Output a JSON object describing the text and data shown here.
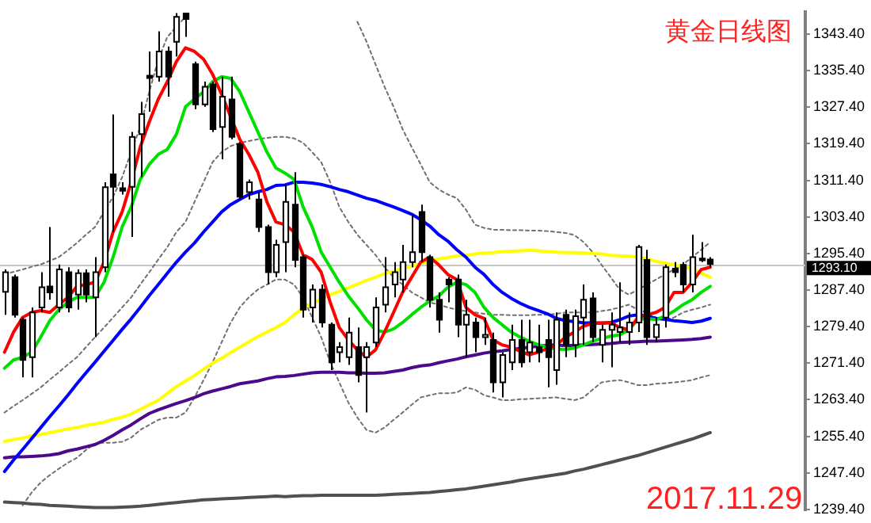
{
  "chart_data": {
    "type": "candlestick",
    "title": "黄金日线图",
    "annotations": [
      "2017.11.29"
    ],
    "categories": [
      null,
      null,
      null,
      null,
      null,
      null,
      null,
      null,
      null,
      null,
      null,
      null,
      null,
      null,
      null,
      null,
      null,
      null,
      null,
      null,
      null,
      null,
      null,
      null,
      null,
      null,
      null,
      null,
      null,
      null,
      null,
      null,
      null,
      null,
      null,
      null,
      null,
      null,
      null,
      null,
      null,
      null,
      null,
      null,
      null,
      null,
      null,
      null,
      null,
      null,
      null,
      null,
      null,
      null,
      null,
      null,
      null,
      null,
      null,
      null,
      null,
      null,
      null,
      null,
      null,
      null,
      null,
      null,
      null,
      null,
      null,
      null,
      null,
      null,
      null,
      null,
      null,
      null,
      null,
      null,
      null,
      null,
      null,
      null,
      null,
      null,
      null,
      null,
      null
    ],
    "ohlc": [
      [
        1287.0,
        1291.9,
        1282.0,
        1291.3
      ],
      [
        1290.2,
        1290.8,
        1281.4,
        1282.0
      ],
      [
        1280.9,
        1281.4,
        1268.3,
        1272.1
      ],
      [
        1272.7,
        1283.6,
        1268.3,
        1282.5
      ],
      [
        1283.6,
        1291.3,
        1282.5,
        1288.0
      ],
      [
        1288.2,
        1301.2,
        1285.3,
        1286.9
      ],
      [
        1283.6,
        1293.0,
        1282.5,
        1291.9
      ],
      [
        1291.3,
        1292.4,
        1282.5,
        1283.6
      ],
      [
        1286.4,
        1291.9,
        1283.1,
        1291.1
      ],
      [
        1291.1,
        1291.9,
        1284.7,
        1286.4
      ],
      [
        1285.8,
        1294.6,
        1277.1,
        1291.3
      ],
      [
        1292.4,
        1311.0,
        1291.3,
        1309.9
      ],
      [
        1312.7,
        1325.8,
        1300.1,
        1310.0
      ],
      [
        1309.7,
        1311.0,
        1308.3,
        1309.1
      ],
      [
        1310.0,
        1322.0,
        1299.0,
        1320.9
      ],
      [
        1321.5,
        1328.6,
        1312.1,
        1325.9
      ],
      [
        1334.3,
        1339.6,
        1326.4,
        1333.8
      ],
      [
        1334.1,
        1344.0,
        1333.0,
        1339.6
      ],
      [
        1339.6,
        1340.7,
        1329.7,
        1334.1
      ],
      [
        1341.7,
        1348.0,
        1338.5,
        1347.2
      ],
      [
        1347.9,
        1348.1,
        1342.8,
        1346.7
      ],
      [
        1336.8,
        1337.4,
        1327.0,
        1328.0
      ],
      [
        1328.0,
        1333.0,
        1327.5,
        1331.9
      ],
      [
        1332.4,
        1333.0,
        1322.0,
        1322.6
      ],
      [
        1323.1,
        1334.1,
        1316.0,
        1329.7
      ],
      [
        1329.1,
        1334.1,
        1320.4,
        1320.9
      ],
      [
        1319.3,
        1319.8,
        1307.2,
        1307.8
      ],
      [
        1308.8,
        1311.6,
        1307.2,
        1311.0
      ],
      [
        1307.2,
        1308.8,
        1300.1,
        1301.2
      ],
      [
        1301.2,
        1301.7,
        1288.6,
        1291.3
      ],
      [
        1291.3,
        1298.4,
        1290.2,
        1297.3
      ],
      [
        1297.9,
        1310.5,
        1291.3,
        1306.7
      ],
      [
        1306.1,
        1313.2,
        1292.4,
        1294.0
      ],
      [
        1294.6,
        1295.1,
        1281.4,
        1283.1
      ],
      [
        1283.6,
        1288.6,
        1280.3,
        1287.5
      ],
      [
        1287.5,
        1288.6,
        1279.2,
        1280.3
      ],
      [
        1279.8,
        1280.3,
        1269.9,
        1271.6
      ],
      [
        1273.8,
        1276.0,
        1271.6,
        1274.9
      ],
      [
        1272.7,
        1281.4,
        1271.0,
        1278.1
      ],
      [
        1274.9,
        1279.2,
        1267.2,
        1268.8
      ],
      [
        1272.7,
        1276.0,
        1260.6,
        1274.9
      ],
      [
        1275.9,
        1285.8,
        1274.9,
        1283.6
      ],
      [
        1284.2,
        1294.6,
        1282.5,
        1288.0
      ],
      [
        1288.6,
        1293.5,
        1285.8,
        1291.3
      ],
      [
        1289.7,
        1297.3,
        1286.9,
        1293.5
      ],
      [
        1293.5,
        1303.9,
        1292.4,
        1295.7
      ],
      [
        1304.5,
        1306.1,
        1293.5,
        1295.7
      ],
      [
        1294.6,
        1295.1,
        1283.6,
        1285.3
      ],
      [
        1285.3,
        1286.9,
        1278.1,
        1280.9
      ],
      [
        1289.7,
        1290.2,
        1284.7,
        1288.6
      ],
      [
        1289.7,
        1290.8,
        1277.1,
        1279.8
      ],
      [
        1279.8,
        1285.3,
        1272.7,
        1282.0
      ],
      [
        1280.3,
        1281.4,
        1273.8,
        1277.1
      ],
      [
        1277.1,
        1281.4,
        1275.4,
        1277.6
      ],
      [
        1276.5,
        1278.1,
        1265.0,
        1267.2
      ],
      [
        1267.2,
        1273.8,
        1263.9,
        1273.2
      ],
      [
        1271.6,
        1279.8,
        1269.9,
        1276.5
      ],
      [
        1276.5,
        1280.9,
        1270.5,
        1271.6
      ],
      [
        1273.8,
        1280.9,
        1271.6,
        1275.9
      ],
      [
        1274.9,
        1279.8,
        1271.6,
        1273.8
      ],
      [
        1276.5,
        1280.9,
        1266.1,
        1272.7
      ],
      [
        1269.9,
        1282.5,
        1266.7,
        1280.9
      ],
      [
        1282.0,
        1283.1,
        1272.7,
        1275.4
      ],
      [
        1275.4,
        1283.1,
        1272.7,
        1281.7
      ],
      [
        1281.4,
        1288.6,
        1275.4,
        1285.3
      ],
      [
        1285.6,
        1286.9,
        1276.0,
        1277.1
      ],
      [
        1275.4,
        1279.8,
        1271.6,
        1278.7
      ],
      [
        1278.7,
        1282.5,
        1270.5,
        1279.8
      ],
      [
        1278.2,
        1289.1,
        1276.0,
        1279.2
      ],
      [
        1278.2,
        1282.5,
        1275.4,
        1280.3
      ],
      [
        1280.3,
        1297.3,
        1278.2,
        1296.8
      ],
      [
        1294.0,
        1296.2,
        1275.4,
        1277.1
      ],
      [
        1277.1,
        1281.4,
        1276.0,
        1279.8
      ],
      [
        1281.4,
        1293.0,
        1279.2,
        1292.4
      ],
      [
        1292.1,
        1293.5,
        1290.2,
        1291.3
      ],
      [
        1292.9,
        1293.5,
        1286.9,
        1288.6
      ],
      [
        1288.6,
        1299.5,
        1286.9,
        1294.6
      ],
      [
        1294.3,
        1297.9,
        1293.5,
        1293.9
      ],
      [
        1294.1,
        1294.6,
        1292.4,
        1293.1
      ],
      null,
      null,
      null,
      null,
      null,
      null,
      null,
      null,
      null,
      null
    ],
    "series": [
      {
        "type": "line",
        "color": "#ff0000",
        "line_style": "solid",
        "values": [
          1273.8,
          1278.2,
          1281.4,
          1282.5,
          1282.9,
          1282.5,
          1284.2,
          1285.8,
          1288.2,
          1288.6,
          1289.1,
          1293.5,
          1300.1,
          1304.5,
          1311.0,
          1318.7,
          1324.2,
          1329.2,
          1333.0,
          1337.4,
          1340.4,
          1339.6,
          1337.9,
          1334.6,
          1330.2,
          1325.3,
          1320.4,
          1317.1,
          1313.2,
          1306.7,
          1302.3,
          1301.7,
          1300.1,
          1295.1,
          1294.1,
          1291.3,
          1284.7,
          1279.2,
          1276.5,
          1274.3,
          1272.7,
          1274.3,
          1278.2,
          1282.5,
          1286.9,
          1290.2,
          1293.5,
          1294.6,
          1292.9,
          1290.8,
          1289.7,
          1283.6,
          1282.0,
          1281.2,
          1276.5,
          1275.4,
          1274.9,
          1274.0,
          1273.2,
          1273.8,
          1274.6,
          1275.4,
          1277.1,
          1278.2,
          1279.5,
          1280.1,
          1280.1,
          1280.3,
          1279.2,
          1278.7,
          1281.4,
          1282.0,
          1282.5,
          1283.6,
          1286.9,
          1286.9,
          1289.1,
          1291.9,
          1292.4,
          null,
          null,
          null,
          null,
          null,
          null,
          null,
          null,
          null,
          null
        ]
      },
      {
        "type": "line",
        "color": "#00e000",
        "line_style": "solid",
        "values": [
          1270.3,
          1272.1,
          1272.7,
          1273.8,
          1277.1,
          1280.7,
          1283.1,
          1284.7,
          1285.8,
          1285.8,
          1285.8,
          1289.1,
          1294.6,
          1301.2,
          1305.6,
          1311.6,
          1314.9,
          1317.1,
          1318.2,
          1321.5,
          1327.5,
          1329.2,
          1330.8,
          1333.0,
          1334.1,
          1333.7,
          1330.8,
          1326.4,
          1322.0,
          1317.6,
          1314.1,
          1313.0,
          1311.6,
          1305.6,
          1301.2,
          1295.7,
          1292.4,
          1289.1,
          1286.1,
          1283.6,
          1280.9,
          1278.7,
          1278.2,
          1278.9,
          1280.3,
          1282.0,
          1283.6,
          1285.0,
          1286.1,
          1288.0,
          1289.1,
          1288.6,
          1286.9,
          1283.6,
          1281.4,
          1279.8,
          1278.2,
          1277.1,
          1276.2,
          1275.4,
          1274.9,
          1274.5,
          1274.4,
          1274.7,
          1275.4,
          1276.2,
          1276.8,
          1277.3,
          1277.6,
          1278.7,
          1280.9,
          1281.2,
          1280.9,
          1281.7,
          1282.8,
          1284.2,
          1285.3,
          1286.9,
          1288.2,
          null,
          null,
          null,
          null,
          null,
          null,
          null,
          null,
          null,
          null
        ]
      },
      {
        "type": "line",
        "color": "#0000ff",
        "line_style": "solid",
        "values": [
          1247.7,
          1250.2,
          1252.5,
          1254.9,
          1257.3,
          1259.7,
          1262.0,
          1264.4,
          1266.9,
          1269.3,
          1271.6,
          1274.0,
          1276.4,
          1278.8,
          1281.1,
          1283.6,
          1286.2,
          1288.6,
          1291.1,
          1293.5,
          1295.7,
          1297.7,
          1300.1,
          1302.3,
          1304.5,
          1306.1,
          1307.2,
          1308.3,
          1308.9,
          1309.4,
          1310.3,
          1310.4,
          1311.0,
          1311.0,
          1310.8,
          1310.5,
          1310.0,
          1309.4,
          1308.9,
          1308.2,
          1307.5,
          1307.0,
          1306.3,
          1305.6,
          1304.8,
          1304.0,
          1302.8,
          1301.4,
          1299.5,
          1298.1,
          1296.2,
          1294.6,
          1292.4,
          1290.8,
          1288.6,
          1286.9,
          1285.6,
          1284.5,
          1283.6,
          1282.9,
          1282.2,
          1281.2,
          1280.7,
          1280.5,
          1280.2,
          1280.2,
          1280.2,
          1280.3,
          1280.9,
          1281.7,
          1282.0,
          1281.7,
          1281.2,
          1281.0,
          1280.7,
          1280.5,
          1280.3,
          1280.6,
          1281.2,
          null,
          null,
          null,
          null,
          null,
          null,
          null,
          null,
          null,
          null
        ]
      },
      {
        "type": "line",
        "color": "#ffff00",
        "line_style": "solid",
        "values": [
          1254.3,
          1254.7,
          1255.0,
          1255.5,
          1255.8,
          1256.2,
          1256.6,
          1257.0,
          1257.3,
          1257.8,
          1258.1,
          1258.5,
          1259.1,
          1259.6,
          1260.3,
          1261.3,
          1262.3,
          1263.3,
          1264.8,
          1266.3,
          1267.5,
          1268.7,
          1270.1,
          1271.4,
          1272.5,
          1273.7,
          1274.9,
          1276.1,
          1277.2,
          1278.2,
          1279.2,
          1280.3,
          1282.0,
          1283.4,
          1284.5,
          1285.4,
          1286.4,
          1287.1,
          1287.9,
          1288.7,
          1289.5,
          1290.2,
          1291.0,
          1291.5,
          1292.1,
          1292.6,
          1293.2,
          1293.8,
          1294.2,
          1294.5,
          1294.9,
          1295.0,
          1295.3,
          1295.5,
          1295.6,
          1295.8,
          1295.9,
          1296.0,
          1296.1,
          1296.0,
          1295.8,
          1295.7,
          1295.6,
          1295.6,
          1295.5,
          1295.4,
          1295.3,
          1295.0,
          1294.9,
          1294.8,
          1294.6,
          1294.2,
          1293.7,
          1293.3,
          1292.9,
          1292.6,
          1292.0,
          1291.1,
          1290.2,
          null,
          null,
          null,
          null,
          null,
          null,
          null,
          null,
          null,
          null
        ]
      },
      {
        "type": "line",
        "color": "#4b0a8c",
        "line_style": "solid",
        "values": [
          1250.7,
          1250.9,
          1250.9,
          1251.0,
          1251.1,
          1251.3,
          1251.6,
          1252.2,
          1252.6,
          1253.1,
          1253.6,
          1254.5,
          1255.6,
          1256.8,
          1257.9,
          1259.2,
          1260.4,
          1261.2,
          1261.9,
          1262.6,
          1263.2,
          1263.9,
          1264.7,
          1265.3,
          1265.8,
          1266.3,
          1266.9,
          1267.2,
          1267.5,
          1268.0,
          1268.4,
          1268.5,
          1268.7,
          1269.0,
          1269.3,
          1269.4,
          1269.4,
          1269.4,
          1269.3,
          1269.3,
          1269.2,
          1269.2,
          1269.3,
          1269.6,
          1269.9,
          1270.4,
          1270.8,
          1271.0,
          1271.5,
          1271.9,
          1272.3,
          1272.8,
          1273.2,
          1273.6,
          1273.9,
          1274.1,
          1274.4,
          1274.6,
          1274.9,
          1275.1,
          1275.3,
          1275.4,
          1275.2,
          1275.3,
          1275.4,
          1275.5,
          1275.6,
          1275.7,
          1275.9,
          1276.0,
          1276.1,
          1276.2,
          1276.2,
          1276.3,
          1276.4,
          1276.5,
          1276.6,
          1276.8,
          1277.1,
          null,
          null,
          null,
          null,
          null,
          null,
          null,
          null,
          null,
          null
        ]
      },
      {
        "type": "line",
        "color": "#505050",
        "line_style": "solid",
        "values": [
          1241.0,
          1240.9,
          1240.8,
          1240.6,
          1240.5,
          1240.3,
          1240.2,
          1240.1,
          1240.0,
          1239.9,
          1239.8,
          1239.8,
          1239.8,
          1239.9,
          1240.0,
          1240.1,
          1240.3,
          1240.5,
          1240.7,
          1240.9,
          1241.1,
          1241.3,
          1241.5,
          1241.6,
          1241.7,
          1241.8,
          1241.9,
          1242.0,
          1242.1,
          1242.2,
          1242.3,
          1242.2,
          1242.3,
          1242.4,
          1242.4,
          1242.5,
          1242.5,
          1242.5,
          1242.5,
          1242.5,
          1242.5,
          1242.5,
          1242.6,
          1242.7,
          1242.8,
          1242.9,
          1243.0,
          1243.1,
          1243.3,
          1243.5,
          1243.7,
          1243.9,
          1244.2,
          1244.5,
          1244.8,
          1245.1,
          1245.4,
          1245.8,
          1246.1,
          1246.4,
          1246.7,
          1247.0,
          1247.3,
          1247.8,
          1248.2,
          1248.7,
          1249.2,
          1249.7,
          1250.2,
          1250.7,
          1251.2,
          1251.8,
          1252.4,
          1253.0,
          1253.6,
          1254.2,
          1254.8,
          1255.5,
          1256.2,
          null,
          null,
          null,
          null,
          null,
          null,
          null,
          null,
          null,
          null
        ]
      },
      {
        "type": "line",
        "color": "#707070",
        "line_style": "dotted",
        "values": [
          1290.8,
          1291.4,
          1291.9,
          1292.5,
          1293.0,
          1293.8,
          1294.6,
          1296.1,
          1297.7,
          1299.5,
          1301.2,
          1304.5,
          1307.8,
          1312.1,
          1317.6,
          1323.1,
          1330.8,
          1337.9,
          1342.8,
          1345.0,
          1347.2,
          null,
          null,
          null,
          null,
          null,
          null,
          null,
          null,
          null,
          null,
          null,
          null,
          null,
          null,
          null,
          null,
          null,
          null,
          1346.1,
          1341.8,
          1336.8,
          1331.9,
          1327.5,
          1322.6,
          1318.7,
          1314.9,
          1311.0,
          1309.4,
          1308.3,
          1307.5,
          1305.0,
          1301.7,
          1301.0,
          1300.6,
          1300.6,
          1300.5,
          1300.5,
          1300.4,
          1300.4,
          1300.3,
          1300.1,
          1299.9,
          1299.4,
          1297.9,
          1295.7,
          1292.9,
          1290.2,
          1287.5,
          1286.4,
          1287.5,
          1288.6,
          1289.7,
          1290.8,
          1291.9,
          1293.0,
          1294.6,
          1296.2,
          1297.9,
          null,
          null,
          null,
          null,
          null,
          null,
          null,
          null,
          null,
          null
        ]
      },
      {
        "type": "line",
        "color": "#707070",
        "line_style": "dotted",
        "values": [
          1260.6,
          1262.0,
          1263.3,
          1264.7,
          1266.1,
          1267.8,
          1269.4,
          1271.1,
          1272.7,
          1274.9,
          1277.1,
          1279.2,
          1281.4,
          1283.6,
          1285.8,
          1288.6,
          1291.3,
          1294.1,
          1296.8,
          1300.1,
          1302.3,
          1306.7,
          1311.0,
          1315.4,
          1317.6,
          1318.9,
          1319.6,
          1320.0,
          1320.4,
          1320.7,
          1320.9,
          1320.9,
          1320.6,
          1319.6,
          1317.6,
          1315.4,
          1311.0,
          1305.6,
          1302.3,
          1299.5,
          1297.3,
          1295.1,
          1292.4,
          1290.2,
          1288.6,
          1286.9,
          1285.8,
          1284.7,
          1284.2,
          1283.6,
          1283.1,
          1282.8,
          1282.5,
          1282.2,
          1282.0,
          1282.0,
          1281.9,
          1281.9,
          1281.9,
          1282.0,
          1282.0,
          1282.2,
          1282.5,
          1282.5,
          1282.5,
          1282.5,
          1282.8,
          1283.1,
          1283.6,
          1284.2,
          1283.1,
          1282.5,
          1281.4,
          1280.9,
          1281.4,
          1282.5,
          1283.1,
          1283.6,
          1284.2,
          null,
          null,
          null,
          null,
          null,
          null,
          null,
          null,
          null,
          null
        ]
      },
      {
        "type": "line",
        "color": "#707070",
        "line_style": "dotted",
        "values": [
          null,
          null,
          1240.3,
          1243.1,
          1245.3,
          1246.9,
          1248.3,
          1249.6,
          1250.7,
          1252.4,
          1253.8,
          1254.0,
          1254.0,
          1254.2,
          1255.1,
          1256.8,
          1257.9,
          1259.0,
          1259.5,
          1259.5,
          1260.6,
          1263.9,
          1267.7,
          1271.6,
          1276.0,
          1280.3,
          1283.6,
          1285.8,
          1287.5,
          1288.6,
          1289.7,
          1289.7,
          1288.6,
          1285.8,
          1281.4,
          1277.1,
          1271.6,
          1267.2,
          1262.8,
          1259.5,
          1256.8,
          1256.2,
          1257.3,
          1259.0,
          1260.6,
          1262.3,
          1263.9,
          1264.4,
          1264.8,
          1264.8,
          1265.0,
          1266.1,
          1265.6,
          1264.4,
          1263.9,
          1263.3,
          1263.3,
          1263.5,
          1263.6,
          1263.7,
          1263.8,
          1263.9,
          1263.6,
          1263.3,
          1263.9,
          1265.6,
          1267.2,
          1267.5,
          1267.7,
          1267.2,
          1266.6,
          1266.6,
          1266.9,
          1267.0,
          1267.2,
          1267.4,
          1267.7,
          1268.3,
          1268.8,
          null,
          null,
          null,
          null,
          null,
          null,
          null,
          null,
          null,
          null
        ]
      }
    ],
    "ylim": [
      1239.2,
      1348.3
    ],
    "yticks": [
      {
        "value": 1239.4,
        "label": "1239.40"
      },
      {
        "value": 1247.4,
        "label": "1247.40"
      },
      {
        "value": 1255.4,
        "label": "1255.40"
      },
      {
        "value": 1263.4,
        "label": "1263.40"
      },
      {
        "value": 1271.4,
        "label": "1271.40"
      },
      {
        "value": 1279.4,
        "label": "1279.40"
      },
      {
        "value": 1287.4,
        "label": "1287.40"
      },
      {
        "value": 1295.4,
        "label": "1295.40"
      },
      {
        "value": 1303.4,
        "label": "1303.40"
      },
      {
        "value": 1311.4,
        "label": "1311.40"
      },
      {
        "value": 1319.4,
        "label": "1319.40"
      },
      {
        "value": 1327.4,
        "label": "1327.40"
      },
      {
        "value": 1335.4,
        "label": "1335.40"
      },
      {
        "value": 1343.4,
        "label": "1343.40"
      }
    ],
    "ref_lines": [
      {
        "axis": "y",
        "value": 1293.1,
        "label": "1293.10",
        "color": "#c8c8c8"
      }
    ],
    "tick_labels": "y",
    "grid": false,
    "legend": false,
    "marker": "none"
  }
}
